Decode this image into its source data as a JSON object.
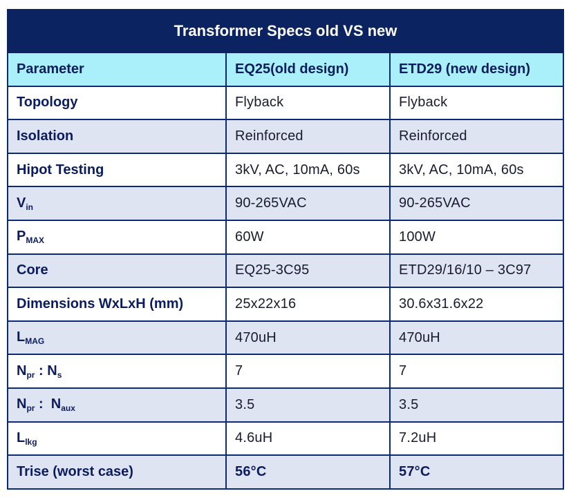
{
  "title": "Transformer Specs old VS new",
  "columns": [
    "Parameter",
    "EQ25(old design)",
    "ETD29 (new design)"
  ],
  "rows": [
    {
      "param": "Topology",
      "old": "Flyback",
      "new": "Flyback"
    },
    {
      "param": "Isolation",
      "old": "Reinforced",
      "new": "Reinforced"
    },
    {
      "param": "Hipot Testing",
      "old": "3kV, AC, 10mA, 60s",
      "new": "3kV, AC, 10mA, 60s"
    },
    {
      "param_main": "V",
      "param_sub": "in",
      "old": "90-265VAC",
      "new": "90-265VAC"
    },
    {
      "param_main": "P",
      "param_sub": "MAX",
      "old": "60W",
      "new": "100W"
    },
    {
      "param": "Core",
      "old": "EQ25-3C95",
      "new": "ETD29/16/10 – 3C97"
    },
    {
      "param": "Dimensions WxLxH (mm)",
      "old": "25x22x16",
      "new": "30.6x31.6x22"
    },
    {
      "param_main": "L",
      "param_sub": "MAG",
      "old": "470uH",
      "new": "470uH"
    },
    {
      "param_a": "N",
      "param_a_sub": "pr",
      "param_sep": " : ",
      "param_b": "N",
      "param_b_sub": "s",
      "old": "7",
      "new": "7"
    },
    {
      "param_a": "N",
      "param_a_sub": "pr",
      "param_sep": " :  ",
      "param_b": "N",
      "param_b_sub": "aux",
      "old": "3.5",
      "new": "3.5"
    },
    {
      "param_main": "L",
      "param_sub": "lkg",
      "old": "4.6uH",
      "new": "7.2uH"
    },
    {
      "param": "Trise (worst case)",
      "old": "56°C",
      "new": "57°C"
    }
  ]
}
